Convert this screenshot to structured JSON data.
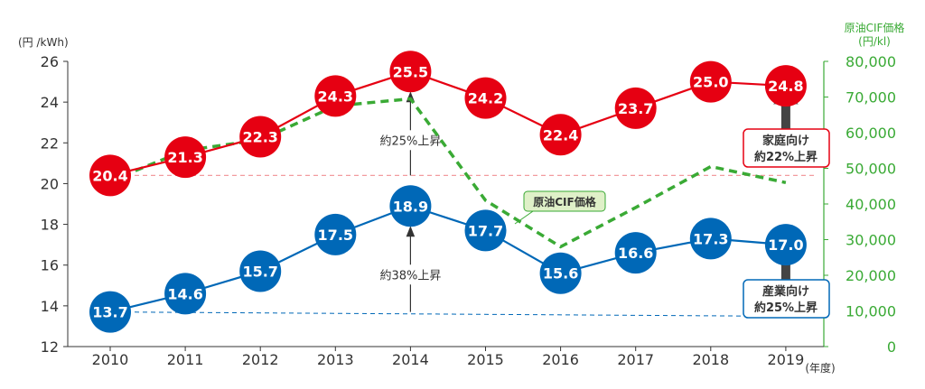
{
  "chart_data": {
    "type": "line",
    "categories": [
      "2010",
      "2011",
      "2012",
      "2013",
      "2014",
      "2015",
      "2016",
      "2017",
      "2018",
      "2019"
    ],
    "y_left_label": "(円 /kWh)",
    "y_left_ticks": [
      "12",
      "14",
      "16",
      "18",
      "20",
      "22",
      "24",
      "26"
    ],
    "ylim_left": [
      12,
      26
    ],
    "y_right_label_line1": "原油CIF価格",
    "y_right_label_line2": "(円/kl)",
    "y_right_ticks": [
      "0",
      "10,000",
      "20,000",
      "30,000",
      "40,000",
      "50,000",
      "60,000",
      "70,000",
      "80,000"
    ],
    "ylim_right": [
      0,
      80000
    ],
    "x_unit_label": "(年度)",
    "series": [
      {
        "name": "家庭向け",
        "axis": "left",
        "color": "#e60012",
        "values": [
          20.4,
          21.3,
          22.3,
          24.3,
          25.5,
          24.2,
          22.4,
          23.7,
          25.0,
          24.8
        ],
        "labels": [
          "20.4",
          "21.3",
          "22.3",
          "24.3",
          "25.5",
          "24.2",
          "22.4",
          "23.7",
          "25.0",
          "24.8"
        ]
      },
      {
        "name": "産業向け",
        "axis": "left",
        "color": "#0068b7",
        "values": [
          13.7,
          14.6,
          15.7,
          17.5,
          18.9,
          17.7,
          15.6,
          16.6,
          17.3,
          17.0
        ],
        "labels": [
          "13.7",
          "14.6",
          "15.7",
          "17.5",
          "18.9",
          "17.7",
          "15.6",
          "16.6",
          "17.3",
          "17.0"
        ]
      },
      {
        "name": "原油CIF価格",
        "axis": "right",
        "color": "#3aaa35",
        "values": [
          46500,
          55000,
          58000,
          67500,
          69500,
          41000,
          28000,
          39000,
          50500,
          46000
        ]
      }
    ],
    "reference_lines": [
      {
        "series": "家庭向け",
        "value": 20.4,
        "color": "#f29c9f"
      },
      {
        "series": "産業向け",
        "value": 13.7,
        "color": "#0068b7"
      }
    ],
    "annotations": {
      "res_increase": "約25%上昇",
      "ind_increase": "約38%上昇",
      "oil_tag": "原油CIF価格",
      "res_box_line1": "家庭向け",
      "res_box_line2": "約22%上昇",
      "ind_box_line1": "産業向け",
      "ind_box_line2": "約25%上昇"
    },
    "colors": {
      "residential": "#e60012",
      "industrial": "#0068b7",
      "oil": "#3aaa35",
      "axis": "#333333",
      "arrow": "#333333"
    }
  }
}
